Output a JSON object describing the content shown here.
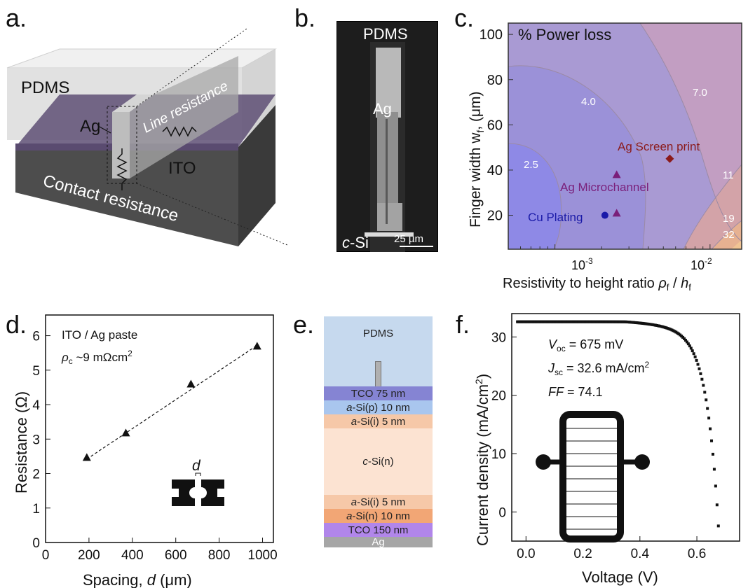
{
  "panel_labels": {
    "a": "a.",
    "b": "b.",
    "c": "c.",
    "d": "d.",
    "e": "e.",
    "f": "f."
  },
  "panel_a": {
    "pdms": "PDMS",
    "ag": "Ag",
    "line_resistance": "Line resistance",
    "ito": "ITO",
    "contact_resistance": "Contact resistance",
    "colors": {
      "ito": "#5e4f74",
      "substrate": "#4a4a4a",
      "pdms": "#e6e6e6"
    }
  },
  "panel_b": {
    "pdms": "PDMS",
    "ag": "Ag",
    "c_prefix": "c",
    "c_suffix": "-Si",
    "scale_bar": "25 µm"
  },
  "panel_e": {
    "layers": [
      {
        "label": "PDMS",
        "color": "#c6d9ee"
      },
      {
        "label": "TCO 75 nm",
        "color": "#8584d3"
      },
      {
        "label_it": "a",
        "label": "-Si(p) 10 nm",
        "color": "#a9c6ee"
      },
      {
        "label_it": "a",
        "label": "-Si(i) 5 nm",
        "color": "#f6c8a8"
      },
      {
        "label_it": "c",
        "label": "-Si(n)",
        "color": "#fce3d2"
      },
      {
        "label_it": "a",
        "label": "-Si(i) 5 nm",
        "color": "#f6c8a8"
      },
      {
        "label_it": "a",
        "label": "-Si(n) 10 nm",
        "color": "#f2a675"
      },
      {
        "label": "TCO 150 nm",
        "color": "#b186ea"
      },
      {
        "label": "Ag",
        "color": "#a6a6a6"
      }
    ]
  },
  "chart_data": [
    {
      "panel": "c",
      "type": "heatmap",
      "title": "% Power loss",
      "xlabel": "Resistivity to height ratio ρf / hf",
      "ylabel": "Finger width wf, (μm)",
      "xscale": "log",
      "xlim": [
        0.0005,
        0.016
      ],
      "ylim": [
        5,
        105
      ],
      "xticks": [
        "10^-3",
        "10^-2"
      ],
      "yticks": [
        20,
        40,
        60,
        80,
        100
      ],
      "contour_levels": [
        "2.5",
        "4.0",
        "7.0",
        "11",
        "19",
        "32"
      ],
      "points": [
        {
          "name": "Ag Screen print",
          "x": 0.0055,
          "y": 45,
          "marker": "diamond",
          "color": "#8b1a1a"
        },
        {
          "name": "Ag Microchannel",
          "x": 0.0025,
          "y": 38,
          "marker": "triangle",
          "color": "#7a1f7a"
        },
        {
          "name": "Ag Microchannel",
          "x": 0.0025,
          "y": 21,
          "marker": "triangle",
          "color": "#7a1f7a"
        },
        {
          "name": "Cu Plating",
          "x": 0.0021,
          "y": 20,
          "marker": "circle",
          "color": "#1a1aa8"
        }
      ],
      "labels": {
        "ag_screen": "Ag Screen print",
        "ag_micro": "Ag Microchannel",
        "cu": "Cu Plating",
        "xbase": "10",
        "xexp1": "-3",
        "xexp2": "-2",
        "xlab_main": "Resistivity to height ratio ",
        "xlab_rho": "ρ",
        "xlab_rho_sub": "f",
        "xlab_slash": " / ",
        "xlab_h": "h",
        "xlab_h_sub": "f",
        "ylab_main": "Finger width w",
        "ylab_sub": "f",
        "ylab_unit": ", (μm)"
      }
    },
    {
      "panel": "d",
      "type": "scatter",
      "xlabel": "Spacing, d (μm)",
      "ylabel": "Resistance (Ω)",
      "xlim": [
        0,
        1050
      ],
      "ylim": [
        0,
        6.6
      ],
      "xticks": [
        0,
        200,
        400,
        600,
        800,
        1000
      ],
      "yticks": [
        0,
        1,
        2,
        3,
        4,
        5,
        6
      ],
      "x": [
        190,
        370,
        670,
        975
      ],
      "y": [
        2.47,
        3.18,
        4.6,
        5.7
      ],
      "fit": {
        "x": [
          190,
          975
        ],
        "y": [
          2.42,
          5.72
        ]
      },
      "annotations": {
        "line1": "ITO / Ag paste",
        "rho": "ρ",
        "rho_sub": "c",
        "rho_val": " ~9 mΩcm",
        "rho_sup": "2",
        "d": "d"
      },
      "labels": {
        "xlab_main": "Spacing, ",
        "xlab_d": "d",
        "xlab_unit": " (μm)",
        "ylab": "Resistance (Ω)"
      }
    },
    {
      "panel": "f",
      "type": "line",
      "xlabel": "Voltage (V)",
      "ylabel": "Current density (mA/cm2)",
      "xlim": [
        -0.05,
        0.75
      ],
      "ylim": [
        -5,
        34
      ],
      "xticks": [
        0.0,
        0.2,
        0.4,
        0.6
      ],
      "yticks": [
        0,
        10,
        20,
        30
      ],
      "voc": 0.675,
      "jsc": 32.6,
      "ff": 74.1,
      "annotations": {
        "voc_label": "V",
        "voc_sub": "oc",
        "voc_val": " = 675 mV",
        "jsc_label": "J",
        "jsc_sub": "sc",
        "jsc_val": " = 32.6 mA/cm",
        "jsc_sup": "2",
        "ff_label": "FF",
        "ff_val": " = 74.1"
      },
      "labels": {
        "xlab": "Voltage (V)",
        "ylab_main": "Current density (mA/cm",
        "ylab_sup": "2",
        "ylab_end": ")"
      }
    }
  ]
}
